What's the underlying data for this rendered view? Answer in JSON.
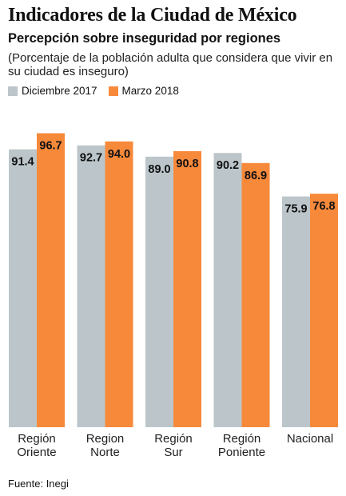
{
  "header": {
    "title": "Indicadores de la Ciudad de México",
    "subtitle": "Percepción sobre inseguridad por regiones",
    "note": "(Porcentaje de la población adulta que considera que vivir en su ciudad es inseguro)"
  },
  "footer": {
    "source": "Fuente: Inegi"
  },
  "chart_data": {
    "type": "bar",
    "title": "Indicadores de la Ciudad de México",
    "subtitle": "Percepción sobre inseguridad por regiones",
    "categories": [
      "Región Oriente",
      "Region Norte",
      "Región Sur",
      "Región Poniente",
      "Nacional"
    ],
    "series": [
      {
        "name": "Diciembre 2017",
        "values": [
          91.4,
          92.7,
          89.0,
          90.2,
          75.9
        ],
        "color": "#bcc6ca"
      },
      {
        "name": "Marzo 2018",
        "values": [
          96.7,
          94.0,
          90.8,
          86.9,
          76.8
        ],
        "color": "#f7893b"
      }
    ],
    "value_labels": [
      [
        "91.4",
        "92.7",
        "89.0",
        "90.2",
        "75.9"
      ],
      [
        "96.7",
        "94.0",
        "90.8",
        "86.9",
        "76.8"
      ]
    ],
    "category_labels": [
      [
        "Región",
        "Oriente"
      ],
      [
        "Region",
        "Norte"
      ],
      [
        "Región",
        "Sur"
      ],
      [
        "Región",
        "Poniente"
      ],
      [
        "Nacional"
      ]
    ],
    "xlabel": "",
    "ylabel": "",
    "ylim": [
      0,
      100
    ],
    "grid": false,
    "legend": "top-left"
  }
}
